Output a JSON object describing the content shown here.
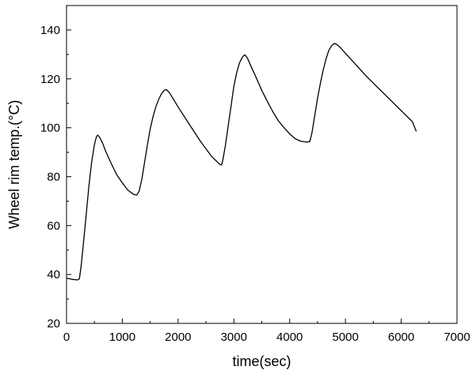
{
  "chart_data": {
    "type": "line",
    "title": "",
    "xlabel": "time(sec)",
    "ylabel": "Wheel rim temp.(°C)",
    "xlim": [
      0,
      7000
    ],
    "ylim": [
      20,
      150
    ],
    "x_ticks": [
      0,
      1000,
      2000,
      3000,
      4000,
      5000,
      6000,
      7000
    ],
    "y_ticks": [
      20,
      40,
      60,
      80,
      100,
      120,
      140
    ],
    "grid": false,
    "legend": "none",
    "line_color": "#000000",
    "series": [
      {
        "x": [
          0,
          100,
          200,
          230,
          260,
          300,
          350,
          400,
          450,
          500,
          520,
          540,
          560,
          580,
          600,
          650,
          700,
          800,
          900,
          1000,
          1100,
          1200,
          1260,
          1300,
          1350,
          1400,
          1450,
          1500,
          1550,
          1600,
          1650,
          1700,
          1750,
          1780,
          1800,
          1850,
          1900,
          2000,
          2200,
          2400,
          2600,
          2750,
          2780,
          2800,
          2850,
          2900,
          2950,
          3000,
          3050,
          3100,
          3150,
          3180,
          3200,
          3220,
          3250,
          3300,
          3400,
          3500,
          3600,
          3700,
          3800,
          3900,
          4000,
          4100,
          4200,
          4300,
          4360,
          4400,
          4450,
          4500,
          4550,
          4600,
          4650,
          4700,
          4750,
          4800,
          4850,
          4900,
          5000,
          5200,
          5400,
          5600,
          5800,
          6000,
          6200,
          6270
        ],
        "y": [
          38.5,
          38,
          37.8,
          38.2,
          43,
          52,
          64,
          76,
          86,
          93,
          95,
          96.5,
          97,
          96.5,
          95.8,
          93.5,
          90.5,
          85.5,
          80.8,
          77.5,
          74.5,
          72.8,
          72.5,
          74,
          79,
          86,
          93,
          99.5,
          104.5,
          108.5,
          111.5,
          113.8,
          115.3,
          115.6,
          115.4,
          114.2,
          112.3,
          108.5,
          101.5,
          94.5,
          88.3,
          85,
          84.8,
          86.5,
          93,
          101,
          109,
          117,
          122.5,
          126.5,
          128.8,
          129.6,
          129.8,
          129.2,
          128.2,
          125.5,
          120.5,
          115.3,
          110.8,
          106.5,
          102.8,
          100,
          97.5,
          95.5,
          94.5,
          94.2,
          94.3,
          98,
          105,
          112,
          118,
          123.5,
          128,
          131.5,
          133.5,
          134.5,
          134,
          133,
          130.5,
          125.5,
          120.5,
          116,
          111.5,
          107,
          102.5,
          98.5
        ]
      }
    ]
  }
}
